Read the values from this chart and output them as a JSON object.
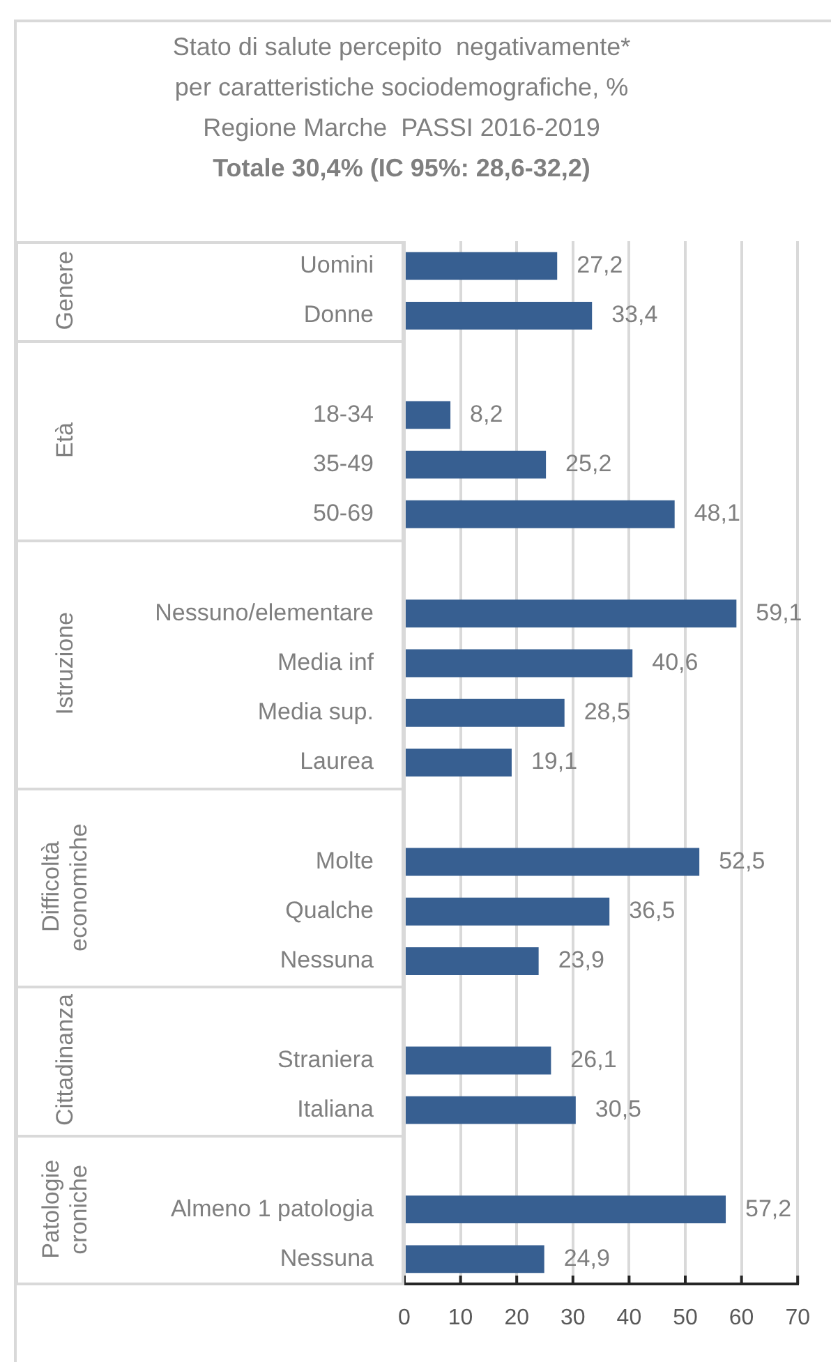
{
  "chart_data": {
    "type": "bar",
    "orientation": "horizontal",
    "title": "Stato di salute percepito  negativamente*\nper caratteristiche sociodemografiche, %\nRegione Marche  PASSI 2016-2019",
    "subtitle": "Totale 30,4% (IC 95%: 28,6-32,2)",
    "categories": [
      "Uomini",
      "Donne",
      null,
      "18-34",
      "35-49",
      "50-69",
      null,
      "Nessuno/elementare",
      "Media inf",
      "Media sup.",
      "Laurea",
      null,
      "Molte",
      "Qualche",
      "Nessuna",
      null,
      "Straniera",
      "Italiana",
      null,
      "Almeno 1 patologia",
      "Nessuna"
    ],
    "values": [
      27.2,
      33.4,
      null,
      8.2,
      25.2,
      48.1,
      null,
      59.1,
      40.6,
      28.5,
      19.1,
      null,
      52.5,
      36.5,
      23.9,
      null,
      26.1,
      30.5,
      null,
      57.2,
      24.9
    ],
    "value_labels": [
      "27,2",
      "33,4",
      null,
      "8,2",
      "25,2",
      "48,1",
      null,
      "59,1",
      "40,6",
      "28,5",
      "19,1",
      null,
      "52,5",
      "36,5",
      "23,9",
      null,
      "26,1",
      "30,5",
      null,
      "57,2",
      "24,9"
    ],
    "color": "#375f91",
    "xlim": [
      0,
      70
    ],
    "xticks": [
      0,
      10,
      20,
      30,
      40,
      50,
      60,
      70
    ],
    "grid": "x",
    "annotations": [
      "Genere",
      "Età",
      "Istruzione",
      "Difficoltà economiche",
      "Cittadinanza",
      "Patologie croniche"
    ]
  }
}
